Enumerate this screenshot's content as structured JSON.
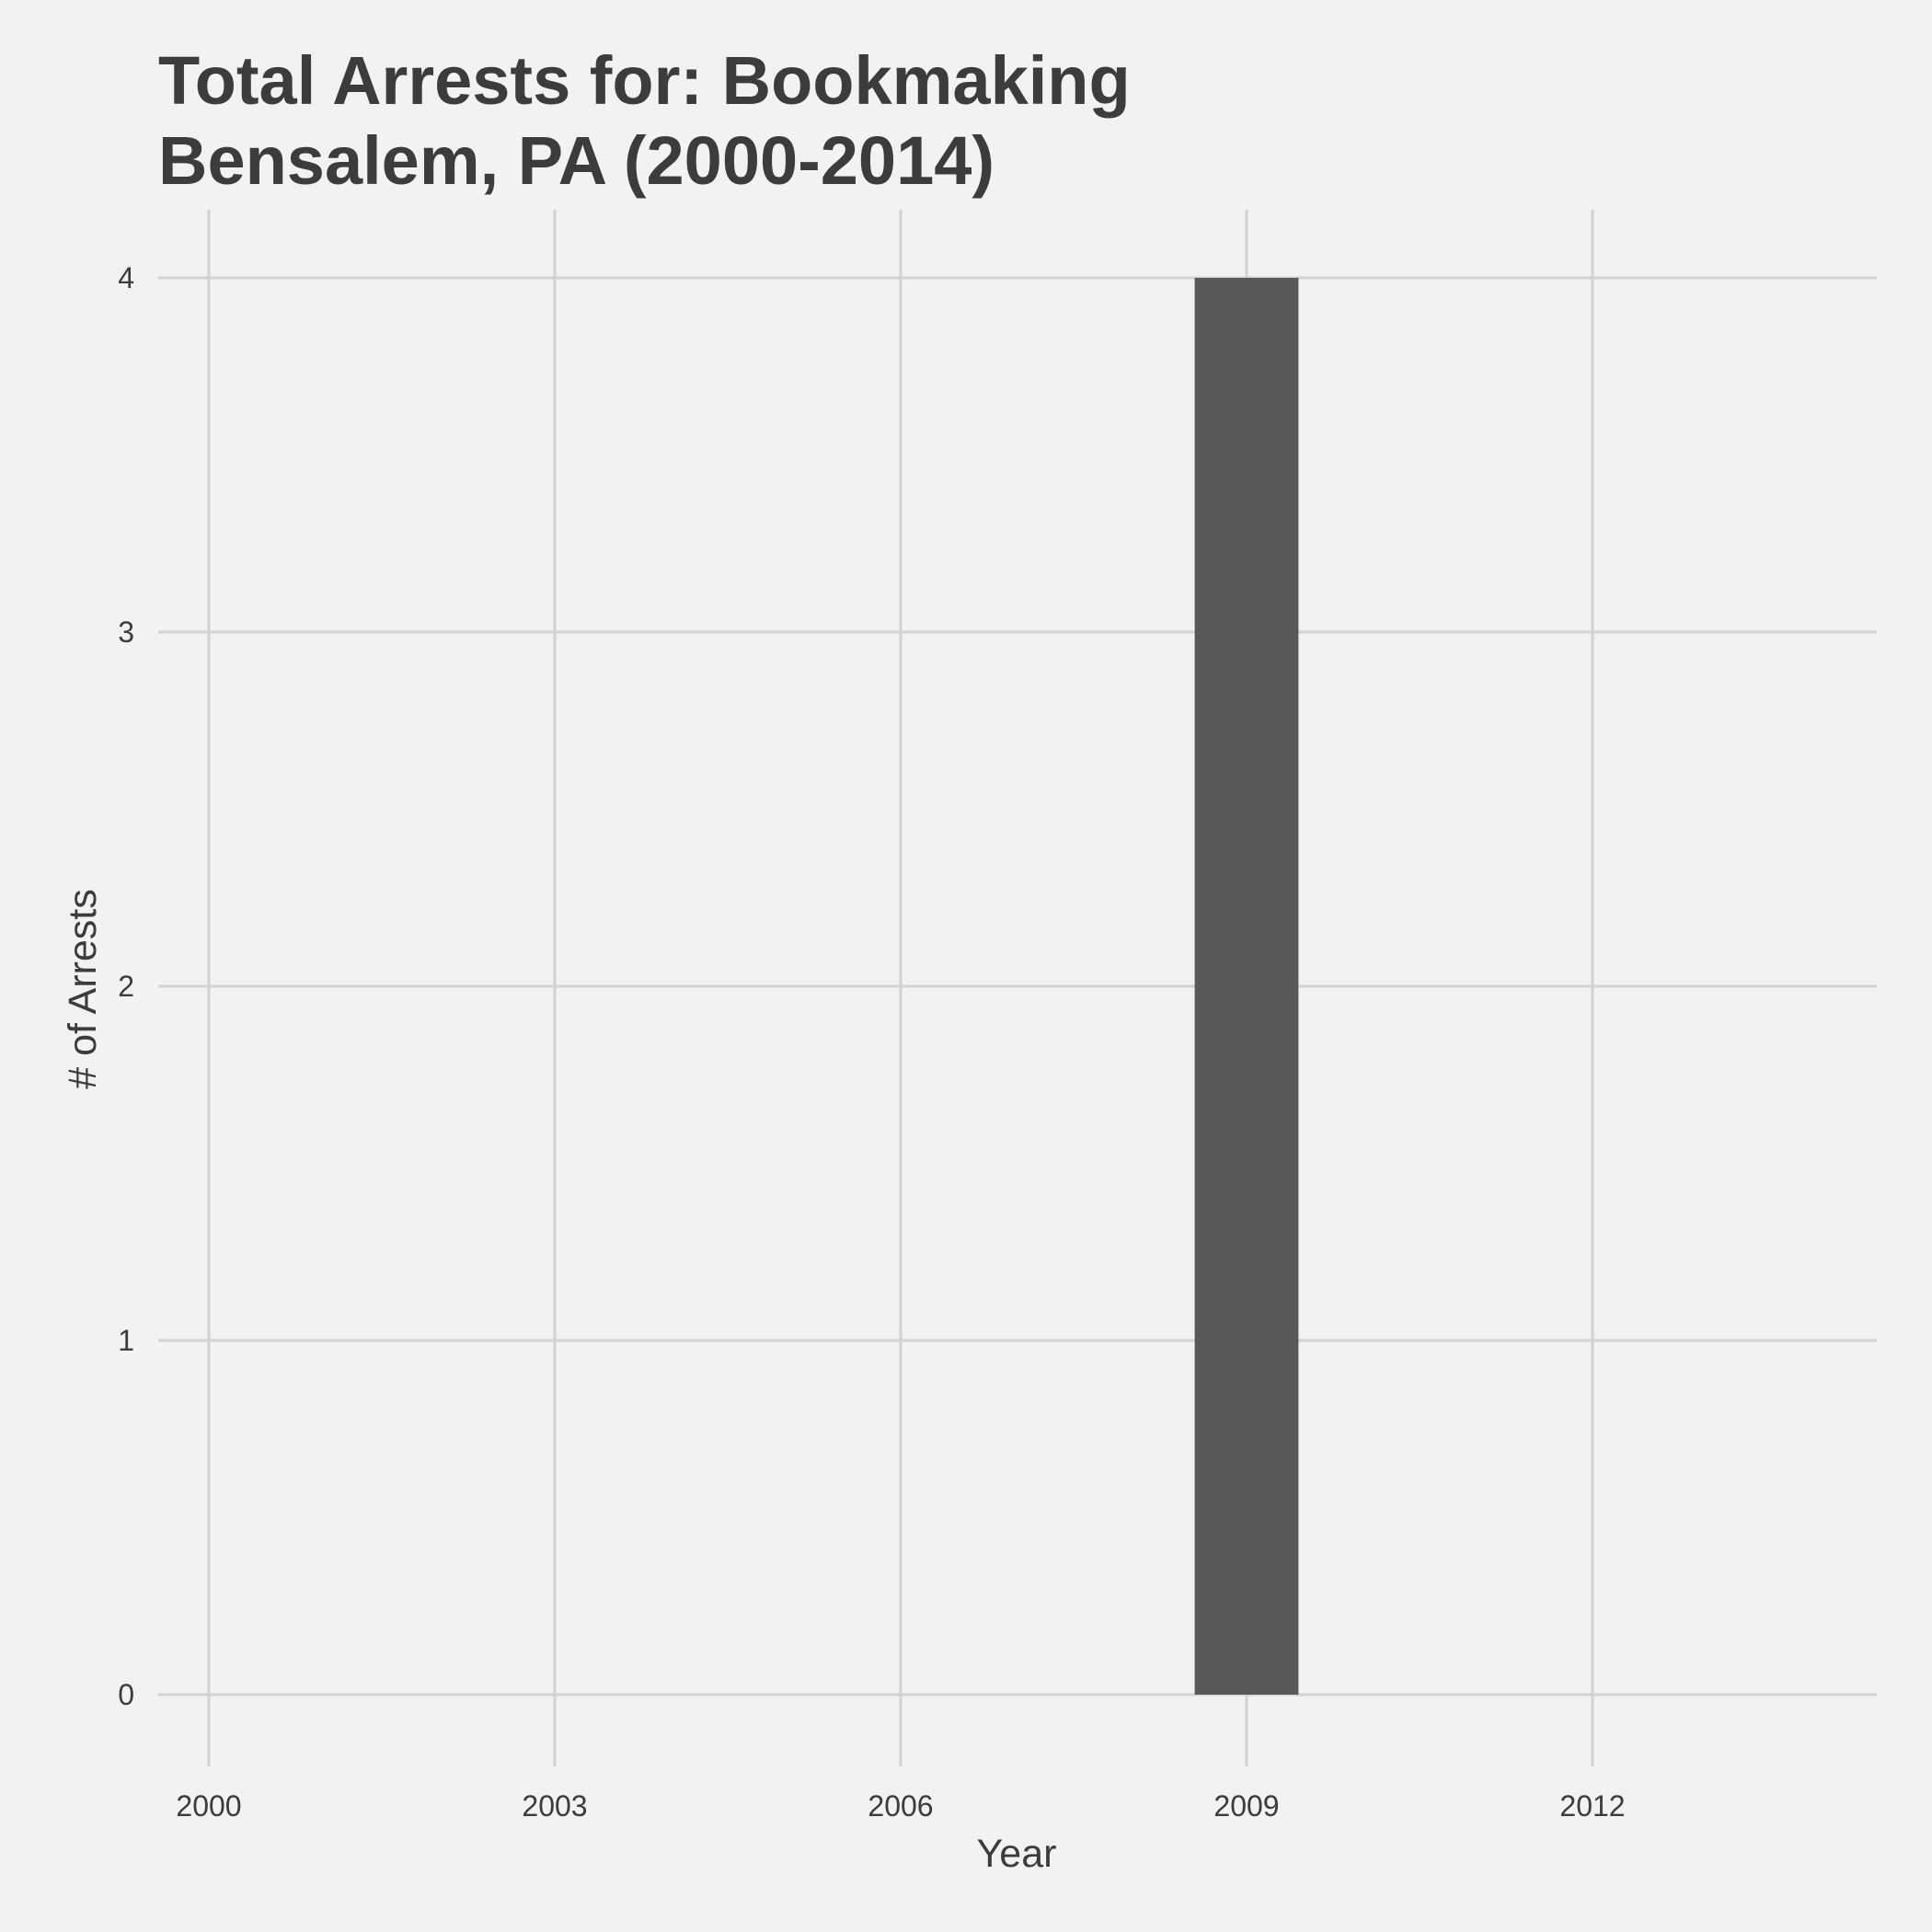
{
  "chart_data": {
    "type": "bar",
    "title": "Total Arrests for: Bookmaking",
    "subtitle": "Bensalem, PA (2000-2014)",
    "xlabel": "Year",
    "ylabel": "# of Arrests",
    "x": [
      2009
    ],
    "values": [
      4
    ],
    "xlim": [
      2000,
      2014
    ],
    "ylim": [
      0,
      4
    ],
    "x_ticks": [
      2000,
      2003,
      2006,
      2009,
      2012
    ],
    "y_ticks": [
      0,
      1,
      2,
      3,
      4
    ],
    "bar_color": "#595959",
    "grid": true,
    "legend": "none"
  }
}
